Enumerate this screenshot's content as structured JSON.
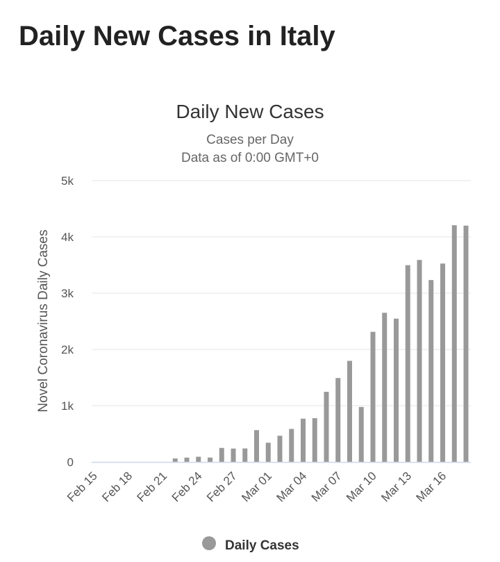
{
  "page": {
    "heading": "Daily New Cases in Italy"
  },
  "chart_data": {
    "type": "bar",
    "title": "Daily New Cases",
    "subtitles": [
      "Cases per Day",
      "Data as of 0:00 GMT+0"
    ],
    "xlabel": "",
    "ylabel": "Novel Coronavirus Daily Cases",
    "ylim": [
      0,
      5000
    ],
    "yticks": [
      0,
      1000,
      2000,
      3000,
      4000,
      5000
    ],
    "ytick_labels": [
      "0",
      "1k",
      "2k",
      "3k",
      "4k",
      "5k"
    ],
    "xtick_labels": [
      "Feb 15",
      "Feb 18",
      "Feb 21",
      "Feb 24",
      "Feb 27",
      "Mar 01",
      "Mar 04",
      "Mar 07",
      "Mar 10",
      "Mar 13",
      "Mar 16"
    ],
    "categories": [
      "Feb 15",
      "Feb 16",
      "Feb 17",
      "Feb 18",
      "Feb 19",
      "Feb 20",
      "Feb 21",
      "Feb 22",
      "Feb 23",
      "Feb 24",
      "Feb 25",
      "Feb 26",
      "Feb 27",
      "Feb 28",
      "Feb 29",
      "Mar 01",
      "Mar 02",
      "Mar 03",
      "Mar 04",
      "Mar 05",
      "Mar 06",
      "Mar 07",
      "Mar 08",
      "Mar 09",
      "Mar 10",
      "Mar 11",
      "Mar 12",
      "Mar 13",
      "Mar 14",
      "Mar 15",
      "Mar 16",
      "Mar 17",
      "Mar 18"
    ],
    "series": [
      {
        "name": "Daily Cases",
        "color": "#999999",
        "values": [
          0,
          0,
          0,
          0,
          0,
          0,
          0,
          62,
          77,
          93,
          78,
          250,
          238,
          240,
          566,
          342,
          466,
          587,
          769,
          778,
          1247,
          1492,
          1797,
          977,
          2313,
          2651,
          2547,
          3497,
          3590,
          3233,
          3526,
          4207,
          4200
        ]
      }
    ],
    "grid": true,
    "legend": {
      "position": "bottom-center",
      "label": "Daily Cases",
      "marker_color": "#999999"
    }
  }
}
